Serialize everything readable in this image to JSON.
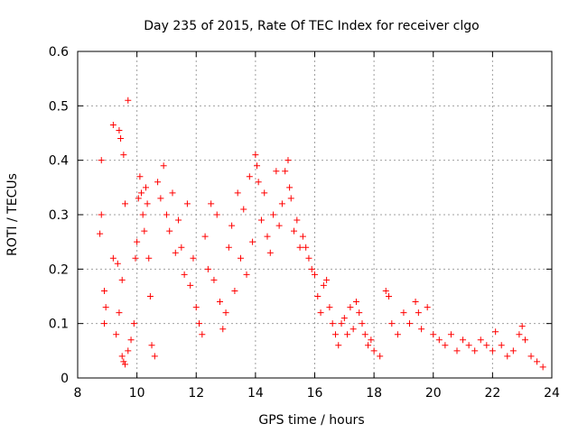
{
  "chart_data": {
    "type": "scatter",
    "title": "Day 235 of 2015, Rate Of TEC Index for receiver clgo",
    "xlabel": "GPS time / hours",
    "ylabel": "ROTI / TECUs",
    "xlim": [
      8,
      24
    ],
    "ylim": [
      0,
      0.6
    ],
    "x_ticks": [
      8,
      10,
      12,
      14,
      16,
      18,
      20,
      22,
      24
    ],
    "y_ticks": [
      0,
      0.1,
      0.2,
      0.3,
      0.4,
      0.5,
      0.6
    ],
    "x_tick_labels": [
      "8",
      "10",
      "12",
      "14",
      "16",
      "18",
      "20",
      "22",
      "24"
    ],
    "y_tick_labels": [
      "0",
      "0.1",
      "0.2",
      "0.3",
      "0.4",
      "0.5",
      "0.6"
    ],
    "grid": true,
    "marker": "+",
    "series": [
      {
        "name": "ROTI",
        "color": "#ff0000",
        "points": [
          [
            8.8,
            0.4
          ],
          [
            8.8,
            0.3
          ],
          [
            8.75,
            0.265
          ],
          [
            8.9,
            0.16
          ],
          [
            8.95,
            0.13
          ],
          [
            8.9,
            0.1
          ],
          [
            9.2,
            0.465
          ],
          [
            9.4,
            0.455
          ],
          [
            9.45,
            0.44
          ],
          [
            9.55,
            0.41
          ],
          [
            9.7,
            0.51
          ],
          [
            9.6,
            0.32
          ],
          [
            9.2,
            0.22
          ],
          [
            9.35,
            0.21
          ],
          [
            9.5,
            0.18
          ],
          [
            9.4,
            0.12
          ],
          [
            9.3,
            0.08
          ],
          [
            9.5,
            0.04
          ],
          [
            9.55,
            0.03
          ],
          [
            9.6,
            0.025
          ],
          [
            9.7,
            0.05
          ],
          [
            9.8,
            0.07
          ],
          [
            9.9,
            0.1
          ],
          [
            9.95,
            0.22
          ],
          [
            10.0,
            0.25
          ],
          [
            10.05,
            0.33
          ],
          [
            10.1,
            0.37
          ],
          [
            10.15,
            0.34
          ],
          [
            10.2,
            0.3
          ],
          [
            10.25,
            0.27
          ],
          [
            10.3,
            0.35
          ],
          [
            10.35,
            0.32
          ],
          [
            10.4,
            0.22
          ],
          [
            10.45,
            0.15
          ],
          [
            10.5,
            0.06
          ],
          [
            10.6,
            0.04
          ],
          [
            10.7,
            0.36
          ],
          [
            10.8,
            0.33
          ],
          [
            10.9,
            0.39
          ],
          [
            11.0,
            0.3
          ],
          [
            11.1,
            0.27
          ],
          [
            11.2,
            0.34
          ],
          [
            11.3,
            0.23
          ],
          [
            11.4,
            0.29
          ],
          [
            11.5,
            0.24
          ],
          [
            11.6,
            0.19
          ],
          [
            11.7,
            0.32
          ],
          [
            11.8,
            0.17
          ],
          [
            11.9,
            0.22
          ],
          [
            12.0,
            0.13
          ],
          [
            12.1,
            0.1
          ],
          [
            12.2,
            0.08
          ],
          [
            12.3,
            0.26
          ],
          [
            12.4,
            0.2
          ],
          [
            12.5,
            0.32
          ],
          [
            12.6,
            0.18
          ],
          [
            12.7,
            0.3
          ],
          [
            12.8,
            0.14
          ],
          [
            12.9,
            0.09
          ],
          [
            13.0,
            0.12
          ],
          [
            13.1,
            0.24
          ],
          [
            13.2,
            0.28
          ],
          [
            13.3,
            0.16
          ],
          [
            13.4,
            0.34
          ],
          [
            13.5,
            0.22
          ],
          [
            13.6,
            0.31
          ],
          [
            13.7,
            0.19
          ],
          [
            13.8,
            0.37
          ],
          [
            13.9,
            0.25
          ],
          [
            14.0,
            0.41
          ],
          [
            14.05,
            0.39
          ],
          [
            14.1,
            0.36
          ],
          [
            14.2,
            0.29
          ],
          [
            14.3,
            0.34
          ],
          [
            14.4,
            0.26
          ],
          [
            14.5,
            0.23
          ],
          [
            14.6,
            0.3
          ],
          [
            14.7,
            0.38
          ],
          [
            14.8,
            0.28
          ],
          [
            14.9,
            0.32
          ],
          [
            15.0,
            0.38
          ],
          [
            15.1,
            0.4
          ],
          [
            15.15,
            0.35
          ],
          [
            15.2,
            0.33
          ],
          [
            15.3,
            0.27
          ],
          [
            15.4,
            0.29
          ],
          [
            15.5,
            0.24
          ],
          [
            15.6,
            0.26
          ],
          [
            15.7,
            0.24
          ],
          [
            15.8,
            0.22
          ],
          [
            15.9,
            0.2
          ],
          [
            16.0,
            0.19
          ],
          [
            16.1,
            0.15
          ],
          [
            16.2,
            0.12
          ],
          [
            16.3,
            0.17
          ],
          [
            16.4,
            0.18
          ],
          [
            16.5,
            0.13
          ],
          [
            16.6,
            0.1
          ],
          [
            16.7,
            0.08
          ],
          [
            16.8,
            0.06
          ],
          [
            16.9,
            0.1
          ],
          [
            17.0,
            0.11
          ],
          [
            17.1,
            0.08
          ],
          [
            17.2,
            0.13
          ],
          [
            17.3,
            0.09
          ],
          [
            17.4,
            0.14
          ],
          [
            17.5,
            0.12
          ],
          [
            17.6,
            0.1
          ],
          [
            17.7,
            0.08
          ],
          [
            17.8,
            0.06
          ],
          [
            17.9,
            0.07
          ],
          [
            18.0,
            0.05
          ],
          [
            18.2,
            0.04
          ],
          [
            18.4,
            0.16
          ],
          [
            18.5,
            0.15
          ],
          [
            18.6,
            0.1
          ],
          [
            18.8,
            0.08
          ],
          [
            19.0,
            0.12
          ],
          [
            19.2,
            0.1
          ],
          [
            19.4,
            0.14
          ],
          [
            19.5,
            0.12
          ],
          [
            19.6,
            0.09
          ],
          [
            19.8,
            0.13
          ],
          [
            20.0,
            0.08
          ],
          [
            20.2,
            0.07
          ],
          [
            20.4,
            0.06
          ],
          [
            20.6,
            0.08
          ],
          [
            20.8,
            0.05
          ],
          [
            21.0,
            0.07
          ],
          [
            21.2,
            0.06
          ],
          [
            21.4,
            0.05
          ],
          [
            21.6,
            0.07
          ],
          [
            21.8,
            0.06
          ],
          [
            22.0,
            0.05
          ],
          [
            22.1,
            0.085
          ],
          [
            22.3,
            0.06
          ],
          [
            22.5,
            0.04
          ],
          [
            22.7,
            0.05
          ],
          [
            22.9,
            0.08
          ],
          [
            23.0,
            0.095
          ],
          [
            23.1,
            0.07
          ],
          [
            23.3,
            0.04
          ],
          [
            23.5,
            0.03
          ],
          [
            23.7,
            0.02
          ]
        ]
      }
    ]
  }
}
